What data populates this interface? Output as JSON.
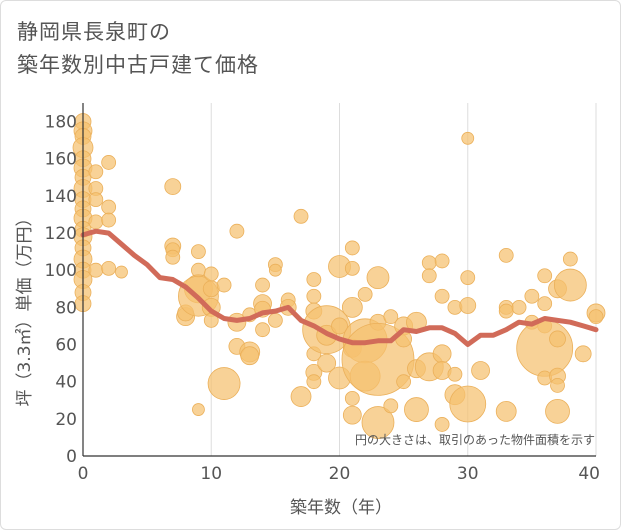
{
  "title_lines": [
    "静岡県長泉町の",
    "築年数別中古戸建て価格"
  ],
  "chart_data": {
    "type": "scatter",
    "title": "静岡県長泉町の築年数別中古戸建て価格",
    "xlabel": "築年数（年）",
    "ylabel": "坪（3.3㎡）単価（万円）",
    "note": "円の大きさは、取引のあった物件面積を示す",
    "xlim": [
      0,
      40
    ],
    "ylim": [
      0,
      190
    ],
    "xticks": [
      0,
      10,
      20,
      30,
      40
    ],
    "yticks": [
      0,
      20,
      40,
      60,
      80,
      100,
      120,
      140,
      160,
      180
    ],
    "colors": {
      "bubble": "#f5c06f",
      "bubble_edge": "#ebb05a",
      "line": "#d16b59",
      "grid": "#dddddd",
      "axis": "#333333"
    },
    "bubbles": [
      {
        "x": 0,
        "y": 180,
        "s": 8
      },
      {
        "x": 0,
        "y": 175,
        "s": 9
      },
      {
        "x": 0,
        "y": 172,
        "s": 8
      },
      {
        "x": 0,
        "y": 166,
        "s": 10
      },
      {
        "x": 0,
        "y": 160,
        "s": 8
      },
      {
        "x": 0,
        "y": 155,
        "s": 9
      },
      {
        "x": 0,
        "y": 150,
        "s": 8
      },
      {
        "x": 0,
        "y": 144,
        "s": 9
      },
      {
        "x": 0,
        "y": 138,
        "s": 8
      },
      {
        "x": 0,
        "y": 133,
        "s": 8
      },
      {
        "x": 0,
        "y": 128,
        "s": 9
      },
      {
        "x": 0,
        "y": 122,
        "s": 8
      },
      {
        "x": 0,
        "y": 118,
        "s": 9
      },
      {
        "x": 0,
        "y": 112,
        "s": 8
      },
      {
        "x": 0,
        "y": 106,
        "s": 9
      },
      {
        "x": 0,
        "y": 100,
        "s": 8
      },
      {
        "x": 0,
        "y": 95,
        "s": 9
      },
      {
        "x": 0,
        "y": 88,
        "s": 8
      },
      {
        "x": 0,
        "y": 82,
        "s": 8
      },
      {
        "x": 1,
        "y": 153,
        "s": 7
      },
      {
        "x": 1,
        "y": 144,
        "s": 7
      },
      {
        "x": 1,
        "y": 138,
        "s": 7
      },
      {
        "x": 1,
        "y": 126,
        "s": 7
      },
      {
        "x": 1,
        "y": 100,
        "s": 7
      },
      {
        "x": 2,
        "y": 158,
        "s": 7
      },
      {
        "x": 2,
        "y": 134,
        "s": 7
      },
      {
        "x": 2,
        "y": 127,
        "s": 7
      },
      {
        "x": 2,
        "y": 101,
        "s": 7
      },
      {
        "x": 3,
        "y": 99,
        "s": 6
      },
      {
        "x": 7,
        "y": 145,
        "s": 8
      },
      {
        "x": 7,
        "y": 113,
        "s": 8
      },
      {
        "x": 7,
        "y": 111,
        "s": 7
      },
      {
        "x": 7,
        "y": 107,
        "s": 7
      },
      {
        "x": 8,
        "y": 75,
        "s": 9
      },
      {
        "x": 8,
        "y": 77,
        "s": 8
      },
      {
        "x": 9,
        "y": 110,
        "s": 7
      },
      {
        "x": 9,
        "y": 100,
        "s": 7
      },
      {
        "x": 9,
        "y": 90,
        "s": 14
      },
      {
        "x": 9,
        "y": 86,
        "s": 20
      },
      {
        "x": 9,
        "y": 25,
        "s": 6
      },
      {
        "x": 10,
        "y": 98,
        "s": 7
      },
      {
        "x": 10,
        "y": 90,
        "s": 8
      },
      {
        "x": 10,
        "y": 80,
        "s": 9
      },
      {
        "x": 10,
        "y": 73,
        "s": 7
      },
      {
        "x": 11,
        "y": 92,
        "s": 7
      },
      {
        "x": 11,
        "y": 39,
        "s": 16
      },
      {
        "x": 12,
        "y": 121,
        "s": 7
      },
      {
        "x": 12,
        "y": 72,
        "s": 9
      },
      {
        "x": 12,
        "y": 59,
        "s": 8
      },
      {
        "x": 13,
        "y": 56,
        "s": 10
      },
      {
        "x": 13,
        "y": 54,
        "s": 9
      },
      {
        "x": 13,
        "y": 76,
        "s": 7
      },
      {
        "x": 14,
        "y": 92,
        "s": 7
      },
      {
        "x": 14,
        "y": 82,
        "s": 9
      },
      {
        "x": 14,
        "y": 79,
        "s": 8
      },
      {
        "x": 14,
        "y": 68,
        "s": 7
      },
      {
        "x": 15,
        "y": 103,
        "s": 7
      },
      {
        "x": 15,
        "y": 100,
        "s": 6
      },
      {
        "x": 15,
        "y": 73,
        "s": 7
      },
      {
        "x": 16,
        "y": 84,
        "s": 7
      },
      {
        "x": 16,
        "y": 80,
        "s": 8
      },
      {
        "x": 17,
        "y": 129,
        "s": 7
      },
      {
        "x": 17,
        "y": 32,
        "s": 10
      },
      {
        "x": 18,
        "y": 95,
        "s": 7
      },
      {
        "x": 18,
        "y": 86,
        "s": 7
      },
      {
        "x": 18,
        "y": 78,
        "s": 8
      },
      {
        "x": 18,
        "y": 45,
        "s": 8
      },
      {
        "x": 18,
        "y": 40,
        "s": 7
      },
      {
        "x": 18,
        "y": 55,
        "s": 7
      },
      {
        "x": 19,
        "y": 68,
        "s": 24
      },
      {
        "x": 19,
        "y": 50,
        "s": 9
      },
      {
        "x": 19,
        "y": 65,
        "s": 10
      },
      {
        "x": 20,
        "y": 102,
        "s": 11
      },
      {
        "x": 20,
        "y": 70,
        "s": 8
      },
      {
        "x": 20,
        "y": 42,
        "s": 11
      },
      {
        "x": 21,
        "y": 112,
        "s": 7
      },
      {
        "x": 21,
        "y": 101,
        "s": 7
      },
      {
        "x": 21,
        "y": 80,
        "s": 10
      },
      {
        "x": 21,
        "y": 31,
        "s": 7
      },
      {
        "x": 21,
        "y": 22,
        "s": 9
      },
      {
        "x": 21,
        "y": 58,
        "s": 9
      },
      {
        "x": 22,
        "y": 87,
        "s": 7
      },
      {
        "x": 22,
        "y": 62,
        "s": 22
      },
      {
        "x": 22,
        "y": 43,
        "s": 15
      },
      {
        "x": 23,
        "y": 96,
        "s": 11
      },
      {
        "x": 23,
        "y": 72,
        "s": 8
      },
      {
        "x": 23,
        "y": 52,
        "s": 36
      },
      {
        "x": 23,
        "y": 18,
        "s": 16
      },
      {
        "x": 24,
        "y": 75,
        "s": 7
      },
      {
        "x": 24,
        "y": 27,
        "s": 7
      },
      {
        "x": 25,
        "y": 70,
        "s": 9
      },
      {
        "x": 25,
        "y": 63,
        "s": 8
      },
      {
        "x": 25,
        "y": 40,
        "s": 7
      },
      {
        "x": 26,
        "y": 72,
        "s": 10
      },
      {
        "x": 26,
        "y": 47,
        "s": 9
      },
      {
        "x": 26,
        "y": 25,
        "s": 12
      },
      {
        "x": 27,
        "y": 104,
        "s": 7
      },
      {
        "x": 27,
        "y": 97,
        "s": 7
      },
      {
        "x": 27,
        "y": 48,
        "s": 14
      },
      {
        "x": 28,
        "y": 105,
        "s": 7
      },
      {
        "x": 28,
        "y": 86,
        "s": 7
      },
      {
        "x": 28,
        "y": 55,
        "s": 9
      },
      {
        "x": 28,
        "y": 46,
        "s": 9
      },
      {
        "x": 28,
        "y": 17,
        "s": 7
      },
      {
        "x": 29,
        "y": 80,
        "s": 7
      },
      {
        "x": 29,
        "y": 44,
        "s": 7
      },
      {
        "x": 29,
        "y": 33,
        "s": 10
      },
      {
        "x": 30,
        "y": 171,
        "s": 6
      },
      {
        "x": 30,
        "y": 96,
        "s": 7
      },
      {
        "x": 30,
        "y": 81,
        "s": 8
      },
      {
        "x": 30,
        "y": 28,
        "s": 18
      },
      {
        "x": 31,
        "y": 46,
        "s": 9
      },
      {
        "x": 33,
        "y": 108,
        "s": 7
      },
      {
        "x": 33,
        "y": 80,
        "s": 7
      },
      {
        "x": 33,
        "y": 78,
        "s": 7
      },
      {
        "x": 33,
        "y": 24,
        "s": 10
      },
      {
        "x": 34,
        "y": 80,
        "s": 7
      },
      {
        "x": 35,
        "y": 86,
        "s": 7
      },
      {
        "x": 35,
        "y": 72,
        "s": 7
      },
      {
        "x": 36,
        "y": 97,
        "s": 7
      },
      {
        "x": 36,
        "y": 82,
        "s": 7
      },
      {
        "x": 36,
        "y": 70,
        "s": 7
      },
      {
        "x": 36,
        "y": 58,
        "s": 28
      },
      {
        "x": 36,
        "y": 42,
        "s": 7
      },
      {
        "x": 37,
        "y": 90,
        "s": 9
      },
      {
        "x": 37,
        "y": 63,
        "s": 8
      },
      {
        "x": 37,
        "y": 43,
        "s": 8
      },
      {
        "x": 37,
        "y": 38,
        "s": 7
      },
      {
        "x": 37,
        "y": 24,
        "s": 12
      },
      {
        "x": 38,
        "y": 106,
        "s": 7
      },
      {
        "x": 38,
        "y": 92,
        "s": 16
      },
      {
        "x": 39,
        "y": 55,
        "s": 8
      },
      {
        "x": 40,
        "y": 77,
        "s": 9
      },
      {
        "x": 40,
        "y": 75,
        "s": 7
      }
    ],
    "trend": {
      "x": [
        0,
        1,
        2,
        3,
        4,
        5,
        6,
        7,
        8,
        9,
        10,
        11,
        12,
        13,
        14,
        15,
        16,
        17,
        18,
        19,
        20,
        21,
        22,
        23,
        24,
        25,
        26,
        27,
        28,
        29,
        30,
        31,
        32,
        33,
        34,
        35,
        36,
        37,
        38,
        39,
        40
      ],
      "y": [
        119,
        121,
        120,
        114,
        108,
        103,
        96,
        95,
        91,
        85,
        78,
        74,
        73,
        74,
        77,
        78,
        80,
        73,
        70,
        66,
        63,
        61,
        61,
        62,
        62,
        68,
        67,
        69,
        69,
        66,
        60,
        65,
        65,
        68,
        72,
        71,
        74,
        73,
        72,
        70,
        68
      ]
    }
  }
}
